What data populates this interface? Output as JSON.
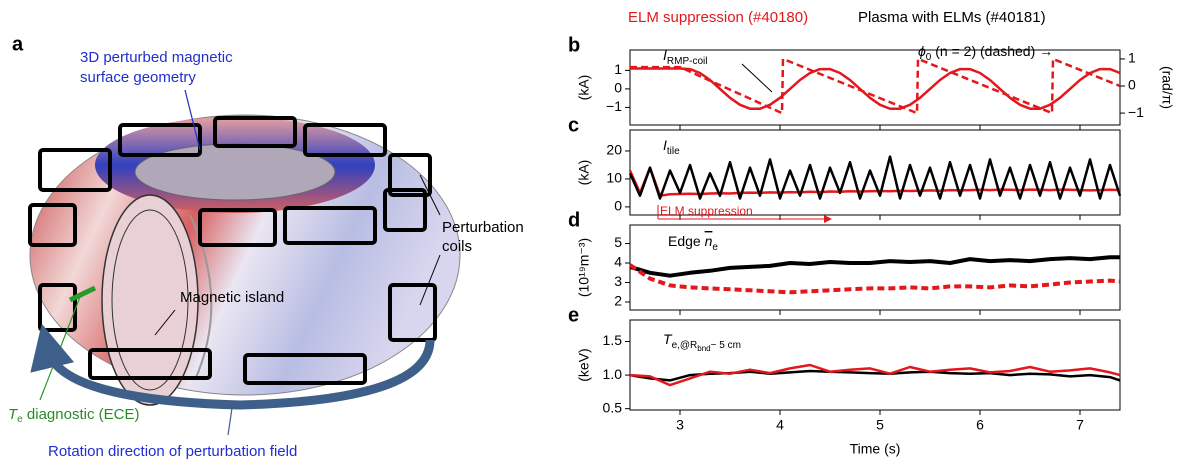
{
  "panel_a": {
    "label": "a",
    "surface_label": [
      "3D perturbed magnetic",
      "surface geometry"
    ],
    "coils_label": [
      "Perturbation",
      "coils"
    ],
    "island_label": "Magnetic island",
    "diagnostic_label": {
      "symbol": "T",
      "sub": "e",
      "rest": " diagnostic (ECE)"
    },
    "rotation_label": "Rotation direction of perturbation field"
  },
  "chart_data": [
    {
      "type": "line",
      "panel": "b",
      "ylabel": "(kA)",
      "y2label": "(rad/π)",
      "xlim": [
        2.5,
        7.4
      ],
      "xticks": [
        3,
        4,
        5,
        6,
        7
      ],
      "ylim": [
        -1.95,
        2.1
      ],
      "yticks": [
        {
          "value": -1,
          "label": "−1"
        },
        0,
        1
      ],
      "y2lim": [
        -1.44,
        1.33
      ],
      "y2ticks": [
        {
          "value": -1,
          "label": "−1"
        },
        0,
        1
      ],
      "annotations": [
        [
          {
            "t": "I",
            "style": "italic"
          },
          {
            "t": "RMP-coil",
            "style": "sub"
          }
        ],
        [
          {
            "t": "ϕ",
            "style": "italic"
          },
          {
            "t": "0",
            "style": "sub"
          },
          {
            "t": " (n = 2) (dashed) →"
          }
        ]
      ],
      "series": [
        {
          "color": "#e3171c",
          "dashed": false,
          "x": [
            2.5,
            2.6,
            2.7,
            2.8,
            2.9,
            3.0,
            3.1,
            3.2,
            3.3,
            3.4,
            3.5,
            3.6,
            3.7,
            3.8,
            3.9,
            4.0,
            4.1,
            4.2,
            4.3,
            4.4,
            4.5,
            4.6,
            4.7,
            4.8,
            4.9,
            5.0,
            5.1,
            5.2,
            5.3,
            5.4,
            5.5,
            5.6,
            5.7,
            5.8,
            5.9,
            6.0,
            6.1,
            6.2,
            6.3,
            6.4,
            6.5,
            6.6,
            6.7,
            6.8,
            6.9,
            7.0,
            7.1,
            7.2,
            7.3,
            7.4
          ],
          "values": [
            1.1,
            1.1,
            1.1,
            1.1,
            1.1,
            1.1,
            1.07,
            0.86,
            0.48,
            0,
            -0.48,
            -0.86,
            -1.07,
            -1.07,
            -0.86,
            -0.48,
            0,
            0.48,
            0.86,
            1.07,
            1.07,
            0.86,
            0.48,
            0,
            -0.48,
            -0.86,
            -1.07,
            -1.07,
            -0.86,
            -0.48,
            0,
            0.48,
            0.86,
            1.07,
            1.07,
            0.86,
            0.48,
            0,
            -0.48,
            -0.86,
            -1.07,
            -1.07,
            -0.86,
            -0.48,
            0,
            0.48,
            0.86,
            1.07,
            1.07,
            0.86
          ]
        },
        {
          "color": "#e3171c",
          "dashed": true,
          "axis": "y2",
          "x": [
            2.5,
            3.0,
            4.02,
            4.03,
            5.37,
            5.38,
            6.72,
            6.73,
            7.4
          ],
          "values": [
            0.7,
            0.7,
            -1.0,
            1.0,
            -1.0,
            1.0,
            -1.0,
            1.0,
            0.0
          ]
        }
      ]
    },
    {
      "type": "line",
      "panel": "c",
      "ylabel": "(kA)",
      "xlim": [
        2.5,
        7.4
      ],
      "xticks": [
        3,
        4,
        5,
        6,
        7
      ],
      "ylim": [
        -2.9,
        27.5
      ],
      "yticks": [
        0,
        10,
        20
      ],
      "annotations": [
        [
          {
            "t": "I",
            "style": "italic"
          },
          {
            "t": "tile",
            "style": "sub"
          }
        ],
        [
          {
            "t": "ELM suppression",
            "style": "red"
          }
        ]
      ],
      "x": [
        2.5,
        2.6,
        2.7,
        2.8,
        2.9,
        3.0,
        3.1,
        3.2,
        3.3,
        3.4,
        3.5,
        3.6,
        3.7,
        3.8,
        3.9,
        4.0,
        4.1,
        4.2,
        4.3,
        4.4,
        4.5,
        4.6,
        4.7,
        4.8,
        4.9,
        5.0,
        5.1,
        5.2,
        5.3,
        5.4,
        5.5,
        5.6,
        5.7,
        5.8,
        5.9,
        6.0,
        6.1,
        6.2,
        6.3,
        6.4,
        6.5,
        6.6,
        6.7,
        6.8,
        6.9,
        7.0,
        7.1,
        7.2,
        7.3,
        7.4
      ],
      "series": [
        {
          "name": "ELM suppression (#40180)",
          "color": "#e3171c",
          "values": [
            13,
            5,
            14,
            4,
            4.5,
            4.6,
            4.7,
            4.6,
            4.8,
            4.9,
            4.8,
            5.0,
            5.1,
            5.0,
            5.2,
            5.1,
            5.3,
            5.2,
            5.4,
            5.3,
            5.5,
            5.4,
            5.6,
            5.5,
            5.6,
            5.7,
            5.6,
            5.8,
            5.7,
            5.8,
            5.9,
            5.8,
            6.0,
            5.9,
            6.0,
            6.1,
            6.0,
            6.2,
            6.1,
            6.0,
            6.2,
            6.1,
            6.0,
            6.2,
            6.1,
            6.0,
            5.9,
            6.0,
            6.1,
            6.0
          ]
        },
        {
          "name": "Plasma with ELMs (#40181)",
          "color": "#000000",
          "values": [
            12,
            4,
            14,
            3,
            13,
            5,
            15,
            3,
            12,
            4,
            16,
            3,
            14,
            4,
            17,
            3,
            13,
            4,
            15,
            3,
            14,
            5,
            16,
            3,
            13,
            4,
            18,
            3,
            15,
            4,
            14,
            3,
            16,
            4,
            15,
            3,
            17,
            4,
            14,
            3,
            15,
            4,
            16,
            3,
            14,
            4,
            17,
            3,
            15,
            4
          ]
        }
      ]
    },
    {
      "type": "line",
      "panel": "d",
      "ylabel": "(10¹⁹m⁻³)",
      "xlim": [
        2.5,
        7.4
      ],
      "xticks": [
        3,
        4,
        5,
        6,
        7
      ],
      "ylim": [
        1.59,
        5.95
      ],
      "yticks": [
        2,
        3,
        4,
        5
      ],
      "annotations": [
        [
          {
            "t": "Edge "
          },
          {
            "t": "n",
            "style": "over"
          },
          {
            "t": "e",
            "style": "sub"
          }
        ]
      ],
      "x": [
        2.5,
        2.7,
        2.9,
        3.1,
        3.3,
        3.5,
        3.7,
        3.9,
        4.1,
        4.3,
        4.5,
        4.7,
        4.9,
        5.1,
        5.3,
        5.5,
        5.7,
        5.9,
        6.1,
        6.3,
        6.5,
        6.7,
        6.9,
        7.1,
        7.3,
        7.4
      ],
      "series": [
        {
          "color": "#000000",
          "dashed": false,
          "width": 4,
          "values": [
            3.8,
            3.5,
            3.35,
            3.5,
            3.6,
            3.75,
            3.8,
            3.85,
            4.0,
            3.95,
            4.05,
            4.0,
            4.0,
            4.1,
            4.05,
            4.1,
            4.0,
            4.2,
            4.1,
            4.15,
            4.1,
            4.2,
            4.25,
            4.2,
            4.3,
            4.3
          ]
        },
        {
          "color": "#e3171c",
          "dashed": true,
          "width": 4,
          "values": [
            3.9,
            3.2,
            2.85,
            2.75,
            2.7,
            2.65,
            2.6,
            2.55,
            2.5,
            2.55,
            2.6,
            2.65,
            2.7,
            2.7,
            2.75,
            2.7,
            2.8,
            2.8,
            2.75,
            2.85,
            2.8,
            2.9,
            3.0,
            3.05,
            3.1,
            3.05
          ]
        }
      ]
    },
    {
      "type": "line",
      "panel": "e",
      "ylabel": "(keV)",
      "xlabel": "Time (s)",
      "xlim": [
        2.5,
        7.4
      ],
      "xticks": [
        3,
        4,
        5,
        6,
        7
      ],
      "ylim": [
        0.48,
        1.82
      ],
      "yticks": [
        0.5,
        {
          "value": 1.0,
          "label": "1.0"
        },
        1.5
      ],
      "annotations": [
        [
          {
            "t": "T",
            "style": "italic"
          },
          {
            "t": "e,@R",
            "style": "sub"
          },
          {
            "t": "bnd",
            "style": "sub2"
          },
          {
            "t": "− 5 cm",
            "style": "sub"
          }
        ]
      ],
      "x": [
        2.5,
        2.7,
        2.9,
        3.1,
        3.3,
        3.5,
        3.7,
        3.9,
        4.1,
        4.3,
        4.5,
        4.7,
        4.9,
        5.1,
        5.3,
        5.5,
        5.7,
        5.9,
        6.1,
        6.3,
        6.5,
        6.7,
        6.9,
        7.1,
        7.3,
        7.4
      ],
      "series": [
        {
          "color": "#000000",
          "values": [
            1.0,
            0.95,
            0.92,
            1.0,
            1.02,
            1.03,
            1.05,
            1.02,
            1.04,
            1.06,
            1.05,
            1.04,
            1.03,
            1.02,
            1.04,
            1.05,
            1.03,
            1.02,
            1.03,
            1.0,
            1.02,
            1.01,
            0.98,
            1.0,
            0.97,
            0.92
          ]
        },
        {
          "color": "#e3171c",
          "values": [
            1.0,
            0.98,
            0.85,
            0.95,
            1.05,
            1.02,
            1.08,
            1.03,
            1.1,
            1.15,
            1.05,
            1.08,
            1.1,
            1.02,
            1.12,
            1.05,
            1.08,
            1.1,
            1.04,
            1.06,
            1.12,
            1.05,
            1.07,
            1.1,
            1.04,
            1.0
          ]
        }
      ]
    }
  ]
}
